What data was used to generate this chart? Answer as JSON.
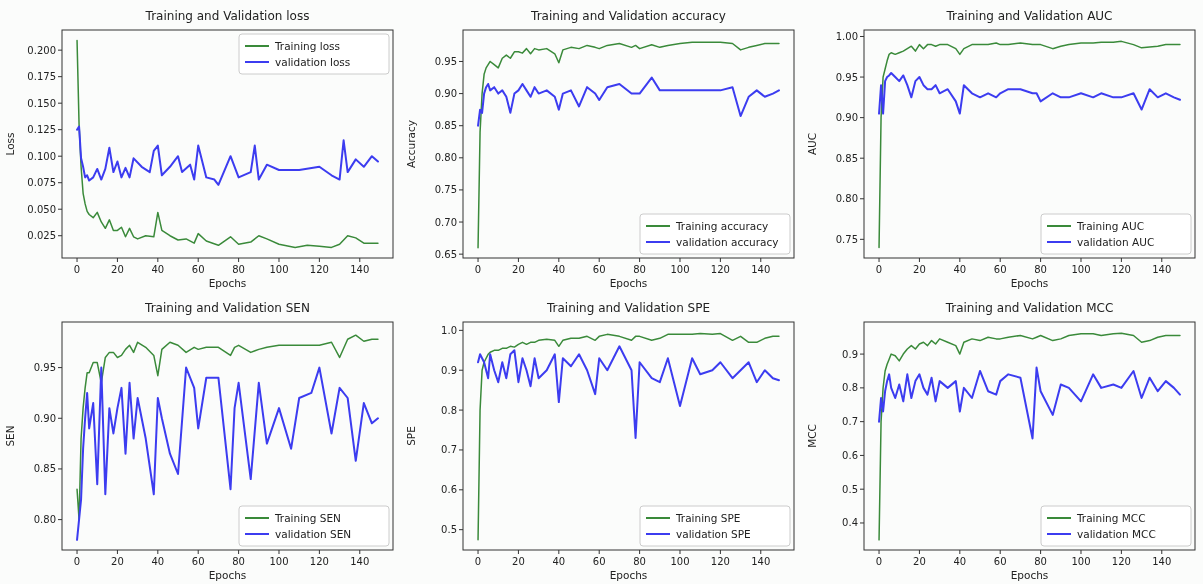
{
  "chart_data": [
    {
      "type": "line",
      "title": "Training and Validation loss",
      "xlabel": "Epochs",
      "ylabel": "Loss",
      "xlim": [
        -7.45,
        156.45
      ],
      "xticks": [
        0,
        20,
        40,
        60,
        80,
        100,
        120,
        140
      ],
      "ylim": [
        0.004,
        0.219
      ],
      "yticks": [
        0.025,
        {
          "value": 0.05,
          "label": "0.050"
        },
        0.075,
        {
          "value": 0.1,
          "label": "0.100"
        },
        0.125,
        {
          "value": 0.15,
          "label": "0.150"
        },
        0.175,
        {
          "value": 0.2,
          "label": "0.200"
        }
      ],
      "legend": "top right",
      "series": [
        {
          "name": "Training loss",
          "color": "#3a8a3a",
          "x": [
            0,
            1,
            2,
            3,
            4,
            5,
            6,
            8,
            10,
            12,
            14,
            16,
            18,
            20,
            22,
            24,
            26,
            28,
            30,
            34,
            38,
            40,
            42,
            46,
            50,
            54,
            58,
            60,
            64,
            70,
            76,
            80,
            86,
            90,
            94,
            100,
            108,
            114,
            120,
            126,
            130,
            134,
            138,
            142,
            149
          ],
          "values": [
            0.209,
            0.13,
            0.09,
            0.065,
            0.055,
            0.048,
            0.045,
            0.042,
            0.047,
            0.038,
            0.032,
            0.04,
            0.03,
            0.03,
            0.033,
            0.024,
            0.032,
            0.024,
            0.022,
            0.025,
            0.024,
            0.047,
            0.03,
            0.025,
            0.021,
            0.022,
            0.018,
            0.027,
            0.02,
            0.016,
            0.024,
            0.017,
            0.019,
            0.025,
            0.022,
            0.017,
            0.014,
            0.016,
            0.015,
            0.014,
            0.017,
            0.025,
            0.023,
            0.018,
            0.018
          ]
        },
        {
          "name": "validation loss",
          "color": "#3c3cf0",
          "x": [
            0,
            1,
            2,
            3,
            4,
            5,
            6,
            8,
            10,
            12,
            14,
            16,
            18,
            20,
            22,
            24,
            26,
            28,
            32,
            36,
            38,
            40,
            42,
            46,
            50,
            52,
            56,
            58,
            60,
            64,
            68,
            70,
            76,
            80,
            86,
            88,
            90,
            94,
            100,
            110,
            120,
            126,
            130,
            132,
            134,
            138,
            142,
            146,
            149
          ],
          "values": [
            0.125,
            0.128,
            0.098,
            0.09,
            0.08,
            0.082,
            0.077,
            0.08,
            0.088,
            0.078,
            0.088,
            0.108,
            0.085,
            0.095,
            0.08,
            0.089,
            0.08,
            0.098,
            0.09,
            0.085,
            0.105,
            0.11,
            0.082,
            0.09,
            0.1,
            0.085,
            0.092,
            0.078,
            0.11,
            0.08,
            0.078,
            0.073,
            0.1,
            0.08,
            0.085,
            0.11,
            0.078,
            0.092,
            0.087,
            0.087,
            0.09,
            0.082,
            0.078,
            0.115,
            0.085,
            0.097,
            0.09,
            0.1,
            0.095
          ]
        }
      ]
    },
    {
      "type": "line",
      "title": "Training and Validation accuracy",
      "xlabel": "Epochs",
      "ylabel": "Accuracy",
      "xlim": [
        -7.45,
        156.45
      ],
      "xticks": [
        0,
        20,
        40,
        60,
        80,
        100,
        120,
        140
      ],
      "ylim": [
        0.644,
        0.999
      ],
      "yticks": [
        0.65,
        {
          "value": 0.7,
          "label": "0.70"
        },
        0.75,
        {
          "value": 0.8,
          "label": "0.80"
        },
        0.85,
        {
          "value": 0.9,
          "label": "0.90"
        },
        0.95
      ],
      "legend": "bottom right",
      "x": [
        0,
        1,
        2,
        3,
        4,
        5,
        6,
        8,
        10,
        12,
        14,
        16,
        18,
        20,
        22,
        24,
        26,
        28,
        30,
        34,
        38,
        40,
        42,
        46,
        50,
        54,
        58,
        60,
        64,
        70,
        76,
        78,
        80,
        86,
        90,
        94,
        100,
        106,
        110,
        116,
        120,
        126,
        130,
        134,
        138,
        142,
        146,
        149
      ],
      "series": [
        {
          "name": "Training accuracy",
          "color": "#3a8a3a",
          "values": [
            0.66,
            0.84,
            0.9,
            0.93,
            0.94,
            0.945,
            0.95,
            0.945,
            0.94,
            0.955,
            0.96,
            0.955,
            0.965,
            0.965,
            0.963,
            0.97,
            0.962,
            0.97,
            0.968,
            0.97,
            0.962,
            0.948,
            0.968,
            0.972,
            0.97,
            0.975,
            0.972,
            0.97,
            0.975,
            0.978,
            0.972,
            0.975,
            0.97,
            0.976,
            0.972,
            0.975,
            0.978,
            0.98,
            0.98,
            0.98,
            0.98,
            0.978,
            0.968,
            0.972,
            0.975,
            0.978,
            0.978,
            0.978
          ]
        },
        {
          "name": "validation accuracy",
          "color": "#3c3cf0",
          "values": [
            0.85,
            0.875,
            0.87,
            0.9,
            0.91,
            0.915,
            0.905,
            0.91,
            0.9,
            0.905,
            0.895,
            0.87,
            0.9,
            0.905,
            0.915,
            0.905,
            0.895,
            0.91,
            0.9,
            0.905,
            0.895,
            0.875,
            0.9,
            0.905,
            0.88,
            0.91,
            0.9,
            0.89,
            0.91,
            0.915,
            0.9,
            0.9,
            0.9,
            0.925,
            0.905,
            0.905,
            0.905,
            0.905,
            0.905,
            0.905,
            0.905,
            0.91,
            0.865,
            0.895,
            0.905,
            0.895,
            0.9,
            0.905
          ]
        }
      ]
    },
    {
      "type": "line",
      "title": "Training and Validation AUC",
      "xlabel": "Epochs",
      "ylabel": "AUC",
      "xlim": [
        -7.45,
        156.45
      ],
      "xticks": [
        0,
        20,
        40,
        60,
        80,
        100,
        120,
        140
      ],
      "ylim": [
        0.727,
        1.008
      ],
      "yticks": [
        0.75,
        {
          "value": 0.8,
          "label": "0.80"
        },
        0.85,
        {
          "value": 0.9,
          "label": "0.90"
        },
        0.95,
        {
          "value": 1,
          "label": "1.00"
        }
      ],
      "legend": "bottom right",
      "x": [
        0,
        1,
        2,
        3,
        4,
        5,
        6,
        8,
        10,
        12,
        14,
        16,
        18,
        20,
        22,
        24,
        26,
        28,
        30,
        34,
        38,
        40,
        42,
        46,
        50,
        54,
        58,
        60,
        64,
        70,
        76,
        78,
        80,
        86,
        90,
        94,
        100,
        106,
        110,
        116,
        120,
        126,
        130,
        134,
        138,
        142,
        146,
        149
      ],
      "series": [
        {
          "name": "Training AUC",
          "color": "#3a8a3a",
          "values": [
            0.74,
            0.9,
            0.95,
            0.96,
            0.97,
            0.978,
            0.98,
            0.978,
            0.98,
            0.982,
            0.985,
            0.988,
            0.982,
            0.99,
            0.985,
            0.99,
            0.99,
            0.988,
            0.99,
            0.99,
            0.985,
            0.978,
            0.985,
            0.99,
            0.99,
            0.99,
            0.992,
            0.99,
            0.99,
            0.992,
            0.99,
            0.99,
            0.99,
            0.985,
            0.988,
            0.99,
            0.992,
            0.992,
            0.993,
            0.993,
            0.994,
            0.99,
            0.986,
            0.987,
            0.988,
            0.99,
            0.99,
            0.99
          ]
        },
        {
          "name": "validation AUC",
          "color": "#3c3cf0",
          "values": [
            0.905,
            0.94,
            0.905,
            0.945,
            0.95,
            0.952,
            0.955,
            0.95,
            0.945,
            0.952,
            0.94,
            0.925,
            0.945,
            0.95,
            0.94,
            0.935,
            0.935,
            0.94,
            0.93,
            0.935,
            0.92,
            0.905,
            0.94,
            0.93,
            0.925,
            0.93,
            0.925,
            0.93,
            0.935,
            0.935,
            0.93,
            0.93,
            0.92,
            0.93,
            0.925,
            0.925,
            0.93,
            0.925,
            0.93,
            0.925,
            0.925,
            0.93,
            0.91,
            0.935,
            0.925,
            0.93,
            0.925,
            0.922
          ]
        }
      ]
    },
    {
      "type": "line",
      "title": "Training and Validation SEN",
      "xlabel": "Epochs",
      "ylabel": "SEN",
      "xlim": [
        -7.45,
        156.45
      ],
      "xticks": [
        0,
        20,
        40,
        60,
        80,
        100,
        120,
        140
      ],
      "ylim": [
        0.77,
        0.995
      ],
      "yticks": [
        {
          "value": 0.8,
          "label": "0.80"
        },
        0.85,
        {
          "value": 0.9,
          "label": "0.90"
        },
        0.95
      ],
      "legend": "bottom right",
      "x": [
        0,
        1,
        2,
        3,
        4,
        5,
        6,
        8,
        10,
        12,
        14,
        16,
        18,
        20,
        22,
        24,
        26,
        28,
        30,
        34,
        38,
        40,
        42,
        46,
        50,
        54,
        58,
        60,
        64,
        70,
        76,
        78,
        80,
        86,
        90,
        94,
        100,
        106,
        110,
        116,
        120,
        126,
        130,
        134,
        138,
        142,
        146,
        149
      ],
      "series": [
        {
          "name": "Training SEN",
          "color": "#3a8a3a",
          "values": [
            0.83,
            0.8,
            0.88,
            0.91,
            0.93,
            0.945,
            0.945,
            0.955,
            0.955,
            0.935,
            0.96,
            0.965,
            0.965,
            0.96,
            0.962,
            0.968,
            0.972,
            0.965,
            0.975,
            0.97,
            0.962,
            0.942,
            0.968,
            0.975,
            0.972,
            0.965,
            0.97,
            0.968,
            0.97,
            0.97,
            0.962,
            0.97,
            0.972,
            0.965,
            0.968,
            0.97,
            0.972,
            0.972,
            0.972,
            0.972,
            0.972,
            0.975,
            0.96,
            0.978,
            0.982,
            0.976,
            0.978,
            0.978
          ]
        },
        {
          "name": "validation SEN",
          "color": "#3c3cf0",
          "values": [
            0.78,
            0.8,
            0.82,
            0.87,
            0.9,
            0.925,
            0.89,
            0.915,
            0.835,
            0.95,
            0.825,
            0.91,
            0.885,
            0.91,
            0.93,
            0.865,
            0.935,
            0.88,
            0.92,
            0.88,
            0.825,
            0.92,
            0.9,
            0.865,
            0.845,
            0.95,
            0.93,
            0.89,
            0.94,
            0.94,
            0.83,
            0.91,
            0.935,
            0.84,
            0.935,
            0.875,
            0.91,
            0.87,
            0.92,
            0.925,
            0.95,
            0.885,
            0.93,
            0.92,
            0.858,
            0.915,
            0.895,
            0.9
          ]
        }
      ]
    },
    {
      "type": "line",
      "title": "Training and Validation SPE",
      "xlabel": "Epochs",
      "ylabel": "SPE",
      "xlim": [
        -7.45,
        156.45
      ],
      "xticks": [
        0,
        20,
        40,
        60,
        80,
        100,
        120,
        140
      ],
      "ylim": [
        0.449,
        1.021
      ],
      "yticks": [
        0.5,
        0.6,
        0.7,
        0.8,
        0.9,
        {
          "value": 1,
          "label": "1.0"
        }
      ],
      "legend": "bottom right",
      "x": [
        0,
        1,
        2,
        3,
        4,
        5,
        6,
        8,
        10,
        12,
        14,
        16,
        18,
        20,
        22,
        24,
        26,
        28,
        30,
        34,
        38,
        40,
        42,
        46,
        50,
        54,
        58,
        60,
        64,
        70,
        76,
        78,
        80,
        86,
        90,
        94,
        100,
        106,
        110,
        116,
        120,
        126,
        130,
        134,
        138,
        142,
        146,
        149
      ],
      "series": [
        {
          "name": "Training SPE",
          "color": "#3a8a3a",
          "values": [
            0.475,
            0.8,
            0.9,
            0.92,
            0.93,
            0.94,
            0.945,
            0.95,
            0.95,
            0.955,
            0.955,
            0.96,
            0.958,
            0.965,
            0.97,
            0.965,
            0.97,
            0.97,
            0.975,
            0.978,
            0.975,
            0.96,
            0.975,
            0.98,
            0.98,
            0.985,
            0.975,
            0.985,
            0.99,
            0.985,
            0.975,
            0.985,
            0.985,
            0.975,
            0.98,
            0.99,
            0.99,
            0.99,
            0.992,
            0.99,
            0.992,
            0.975,
            0.985,
            0.97,
            0.97,
            0.98,
            0.985,
            0.985
          ]
        },
        {
          "name": "validation SPE",
          "color": "#3c3cf0",
          "values": [
            0.92,
            0.94,
            0.93,
            0.92,
            0.9,
            0.88,
            0.94,
            0.9,
            0.87,
            0.92,
            0.88,
            0.94,
            0.95,
            0.87,
            0.93,
            0.9,
            0.86,
            0.93,
            0.88,
            0.9,
            0.94,
            0.82,
            0.93,
            0.91,
            0.94,
            0.9,
            0.84,
            0.93,
            0.9,
            0.96,
            0.9,
            0.73,
            0.92,
            0.88,
            0.87,
            0.93,
            0.81,
            0.93,
            0.89,
            0.9,
            0.92,
            0.88,
            0.9,
            0.92,
            0.87,
            0.9,
            0.88,
            0.875
          ]
        }
      ]
    },
    {
      "type": "line",
      "title": "Training and Validation MCC",
      "xlabel": "Epochs",
      "ylabel": "MCC",
      "xlim": [
        -7.45,
        156.45
      ],
      "xticks": [
        0,
        20,
        40,
        60,
        80,
        100,
        120,
        140
      ],
      "ylim": [
        0.32,
        0.995
      ],
      "yticks": [
        0.4,
        0.5,
        0.6,
        0.7,
        0.8,
        0.9
      ],
      "legend": "bottom right",
      "x": [
        0,
        1,
        2,
        3,
        4,
        5,
        6,
        8,
        10,
        12,
        14,
        16,
        18,
        20,
        22,
        24,
        26,
        28,
        30,
        34,
        38,
        40,
        42,
        46,
        50,
        54,
        58,
        60,
        64,
        70,
        76,
        78,
        80,
        86,
        90,
        94,
        100,
        106,
        110,
        116,
        120,
        126,
        130,
        134,
        138,
        142,
        146,
        149
      ],
      "series": [
        {
          "name": "Training MCC",
          "color": "#3a8a3a",
          "values": [
            0.35,
            0.7,
            0.8,
            0.85,
            0.87,
            0.885,
            0.9,
            0.895,
            0.88,
            0.9,
            0.915,
            0.925,
            0.915,
            0.93,
            0.935,
            0.925,
            0.94,
            0.93,
            0.945,
            0.935,
            0.925,
            0.9,
            0.935,
            0.945,
            0.94,
            0.95,
            0.945,
            0.945,
            0.95,
            0.955,
            0.945,
            0.95,
            0.955,
            0.94,
            0.945,
            0.955,
            0.96,
            0.96,
            0.955,
            0.96,
            0.962,
            0.955,
            0.935,
            0.94,
            0.95,
            0.955,
            0.955,
            0.955
          ]
        },
        {
          "name": "validation MCC",
          "color": "#3c3cf0",
          "values": [
            0.7,
            0.77,
            0.73,
            0.79,
            0.82,
            0.84,
            0.8,
            0.77,
            0.81,
            0.76,
            0.84,
            0.77,
            0.82,
            0.84,
            0.8,
            0.78,
            0.83,
            0.76,
            0.82,
            0.8,
            0.82,
            0.73,
            0.8,
            0.77,
            0.85,
            0.79,
            0.78,
            0.82,
            0.84,
            0.83,
            0.65,
            0.86,
            0.79,
            0.72,
            0.81,
            0.8,
            0.76,
            0.84,
            0.8,
            0.81,
            0.8,
            0.85,
            0.77,
            0.83,
            0.79,
            0.82,
            0.8,
            0.78
          ]
        }
      ]
    }
  ]
}
